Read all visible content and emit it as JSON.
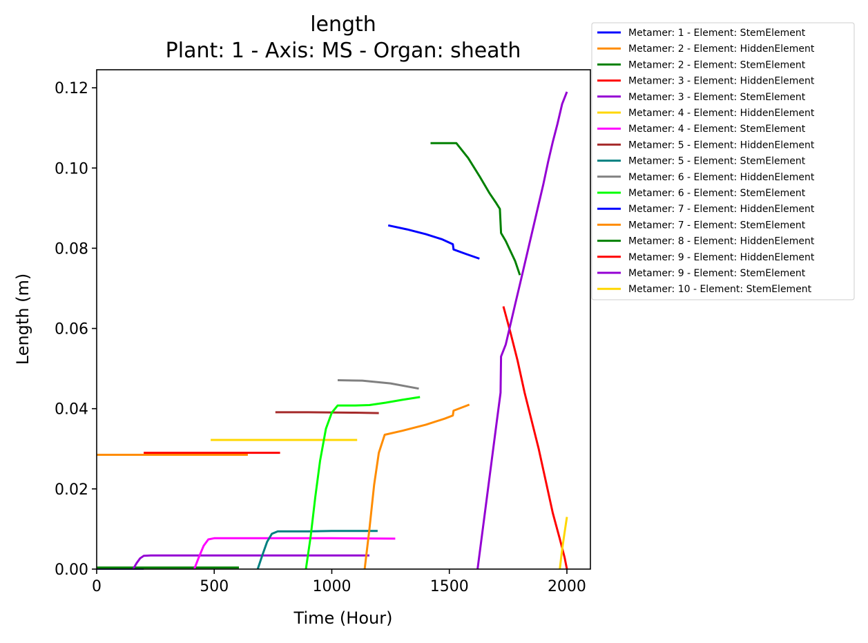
{
  "chart_data": {
    "type": "line",
    "title": "length",
    "subtitle": "Plant: 1 - Axis: MS - Organ: sheath",
    "xlabel": "Time (Hour)",
    "ylabel": "Length (m)",
    "xlim": [
      0,
      2100
    ],
    "ylim": [
      0,
      0.1245
    ],
    "xticks": [
      0,
      500,
      1000,
      1500,
      2000
    ],
    "xtick_labels": [
      "0",
      "500",
      "1000",
      "1500",
      "2000"
    ],
    "yticks": [
      0,
      0.02,
      0.04,
      0.06,
      0.08,
      0.1,
      0.12
    ],
    "ytick_labels": [
      "0.00",
      "0.02",
      "0.04",
      "0.06",
      "0.08",
      "0.10",
      "0.12"
    ],
    "grid": false,
    "legend_position": "outside top-right",
    "series": [
      {
        "name": "Metamer: 1 - Element: StemElement",
        "color": "#0000ff",
        "x": [
          0,
          200
        ],
        "y": [
          0.0001,
          0.0001
        ]
      },
      {
        "name": "Metamer: 2 - Element: HiddenElement",
        "color": "#ff8c00",
        "x": [
          0,
          200,
          400,
          643
        ],
        "y": [
          0.0285,
          0.0285,
          0.0285,
          0.0285
        ]
      },
      {
        "name": "Metamer: 2 - Element: StemElement",
        "color": "#008000",
        "x": [
          0,
          200,
          400,
          605
        ],
        "y": [
          0.0004,
          0.0004,
          0.0004,
          0.0004
        ]
      },
      {
        "name": "Metamer: 3 - Element: HiddenElement",
        "color": "#ff0000",
        "x": [
          200,
          400,
          600,
          780
        ],
        "y": [
          0.029,
          0.029,
          0.029,
          0.029
        ]
      },
      {
        "name": "Metamer: 3 - Element: StemElement",
        "color": "#9400d3",
        "x": [
          155,
          170,
          185,
          200,
          230,
          500,
          800,
          1160
        ],
        "y": [
          0,
          0.0015,
          0.0027,
          0.0033,
          0.0034,
          0.0034,
          0.0034,
          0.0034
        ]
      },
      {
        "name": "Metamer: 4 - Element: HiddenElement",
        "color": "#ffd700",
        "x": [
          485,
          700,
          900,
          1108
        ],
        "y": [
          0.0322,
          0.0322,
          0.0322,
          0.0322
        ]
      },
      {
        "name": "Metamer: 4 - Element: StemElement",
        "color": "#ff00ff",
        "x": [
          415,
          435,
          455,
          475,
          500,
          800,
          1000,
          1270
        ],
        "y": [
          0,
          0.003,
          0.0058,
          0.0074,
          0.0077,
          0.0077,
          0.0077,
          0.0076
        ]
      },
      {
        "name": "Metamer: 5 - Element: HiddenElement",
        "color": "#a52a2a",
        "x": [
          760,
          900,
          1100,
          1200
        ],
        "y": [
          0.0391,
          0.0391,
          0.039,
          0.0389
        ]
      },
      {
        "name": "Metamer: 5 - Element: StemElement",
        "color": "#008080",
        "x": [
          685,
          705,
          725,
          745,
          770,
          900,
          1000,
          1195
        ],
        "y": [
          0,
          0.0035,
          0.0068,
          0.0088,
          0.0094,
          0.0094,
          0.0095,
          0.0095
        ]
      },
      {
        "name": "Metamer: 6 - Element: HiddenElement",
        "color": "#808080",
        "x": [
          1025,
          1130,
          1250,
          1370
        ],
        "y": [
          0.0471,
          0.047,
          0.0463,
          0.045
        ]
      },
      {
        "name": "Metamer: 6 - Element: StemElement",
        "color": "#00ff00",
        "x": [
          890,
          910,
          930,
          950,
          975,
          1000,
          1025,
          1100,
          1160,
          1230,
          1300,
          1375
        ],
        "y": [
          0,
          0.008,
          0.018,
          0.027,
          0.035,
          0.039,
          0.0408,
          0.0408,
          0.0409,
          0.0415,
          0.0422,
          0.0429
        ]
      },
      {
        "name": "Metamer: 7 - Element: HiddenElement",
        "color": "#0000ff",
        "x": [
          1240,
          1320,
          1400,
          1470,
          1515,
          1518,
          1570,
          1628
        ],
        "y": [
          0.0857,
          0.0847,
          0.0835,
          0.0822,
          0.081,
          0.0797,
          0.0786,
          0.0774
        ]
      },
      {
        "name": "Metamer: 7 - Element: StemElement",
        "color": "#ff8c00",
        "x": [
          1140,
          1160,
          1180,
          1200,
          1225,
          1300,
          1400,
          1480,
          1515,
          1518,
          1585
        ],
        "y": [
          0,
          0.01,
          0.021,
          0.029,
          0.0335,
          0.0345,
          0.036,
          0.0375,
          0.0383,
          0.0395,
          0.041
        ]
      },
      {
        "name": "Metamer: 8 - Element: HiddenElement",
        "color": "#008000",
        "x": [
          1420,
          1530,
          1580,
          1630,
          1670,
          1700,
          1715,
          1720,
          1740,
          1760,
          1780,
          1800
        ],
        "y": [
          0.1062,
          0.1062,
          0.1025,
          0.0978,
          0.0938,
          0.0912,
          0.0898,
          0.0838,
          0.0818,
          0.0793,
          0.0768,
          0.0733
        ]
      },
      {
        "name": "Metamer: 9 - Element: HiddenElement",
        "color": "#ff0000",
        "x": [
          1730,
          1760,
          1790,
          1820,
          1850,
          1880,
          1910,
          1940,
          1970,
          1990,
          2000
        ],
        "y": [
          0.0655,
          0.059,
          0.052,
          0.044,
          0.037,
          0.03,
          0.022,
          0.014,
          0.0075,
          0.003,
          0
        ]
      },
      {
        "name": "Metamer: 9 - Element: StemElement",
        "color": "#9400d3",
        "x": [
          1620,
          1640,
          1660,
          1680,
          1700,
          1718,
          1720,
          1740,
          1760,
          1780,
          1800,
          1820,
          1840,
          1860,
          1880,
          1900,
          1920,
          1940,
          1960,
          1980,
          2000
        ],
        "y": [
          0,
          0.009,
          0.018,
          0.027,
          0.036,
          0.044,
          0.053,
          0.056,
          0.061,
          0.066,
          0.071,
          0.076,
          0.081,
          0.086,
          0.091,
          0.096,
          0.1015,
          0.1065,
          0.111,
          0.116,
          0.119
        ]
      },
      {
        "name": "Metamer: 10 - Element: StemElement",
        "color": "#ffd700",
        "x": [
          1970,
          1980,
          1990,
          2000
        ],
        "y": [
          0,
          0.005,
          0.009,
          0.013
        ]
      }
    ]
  }
}
